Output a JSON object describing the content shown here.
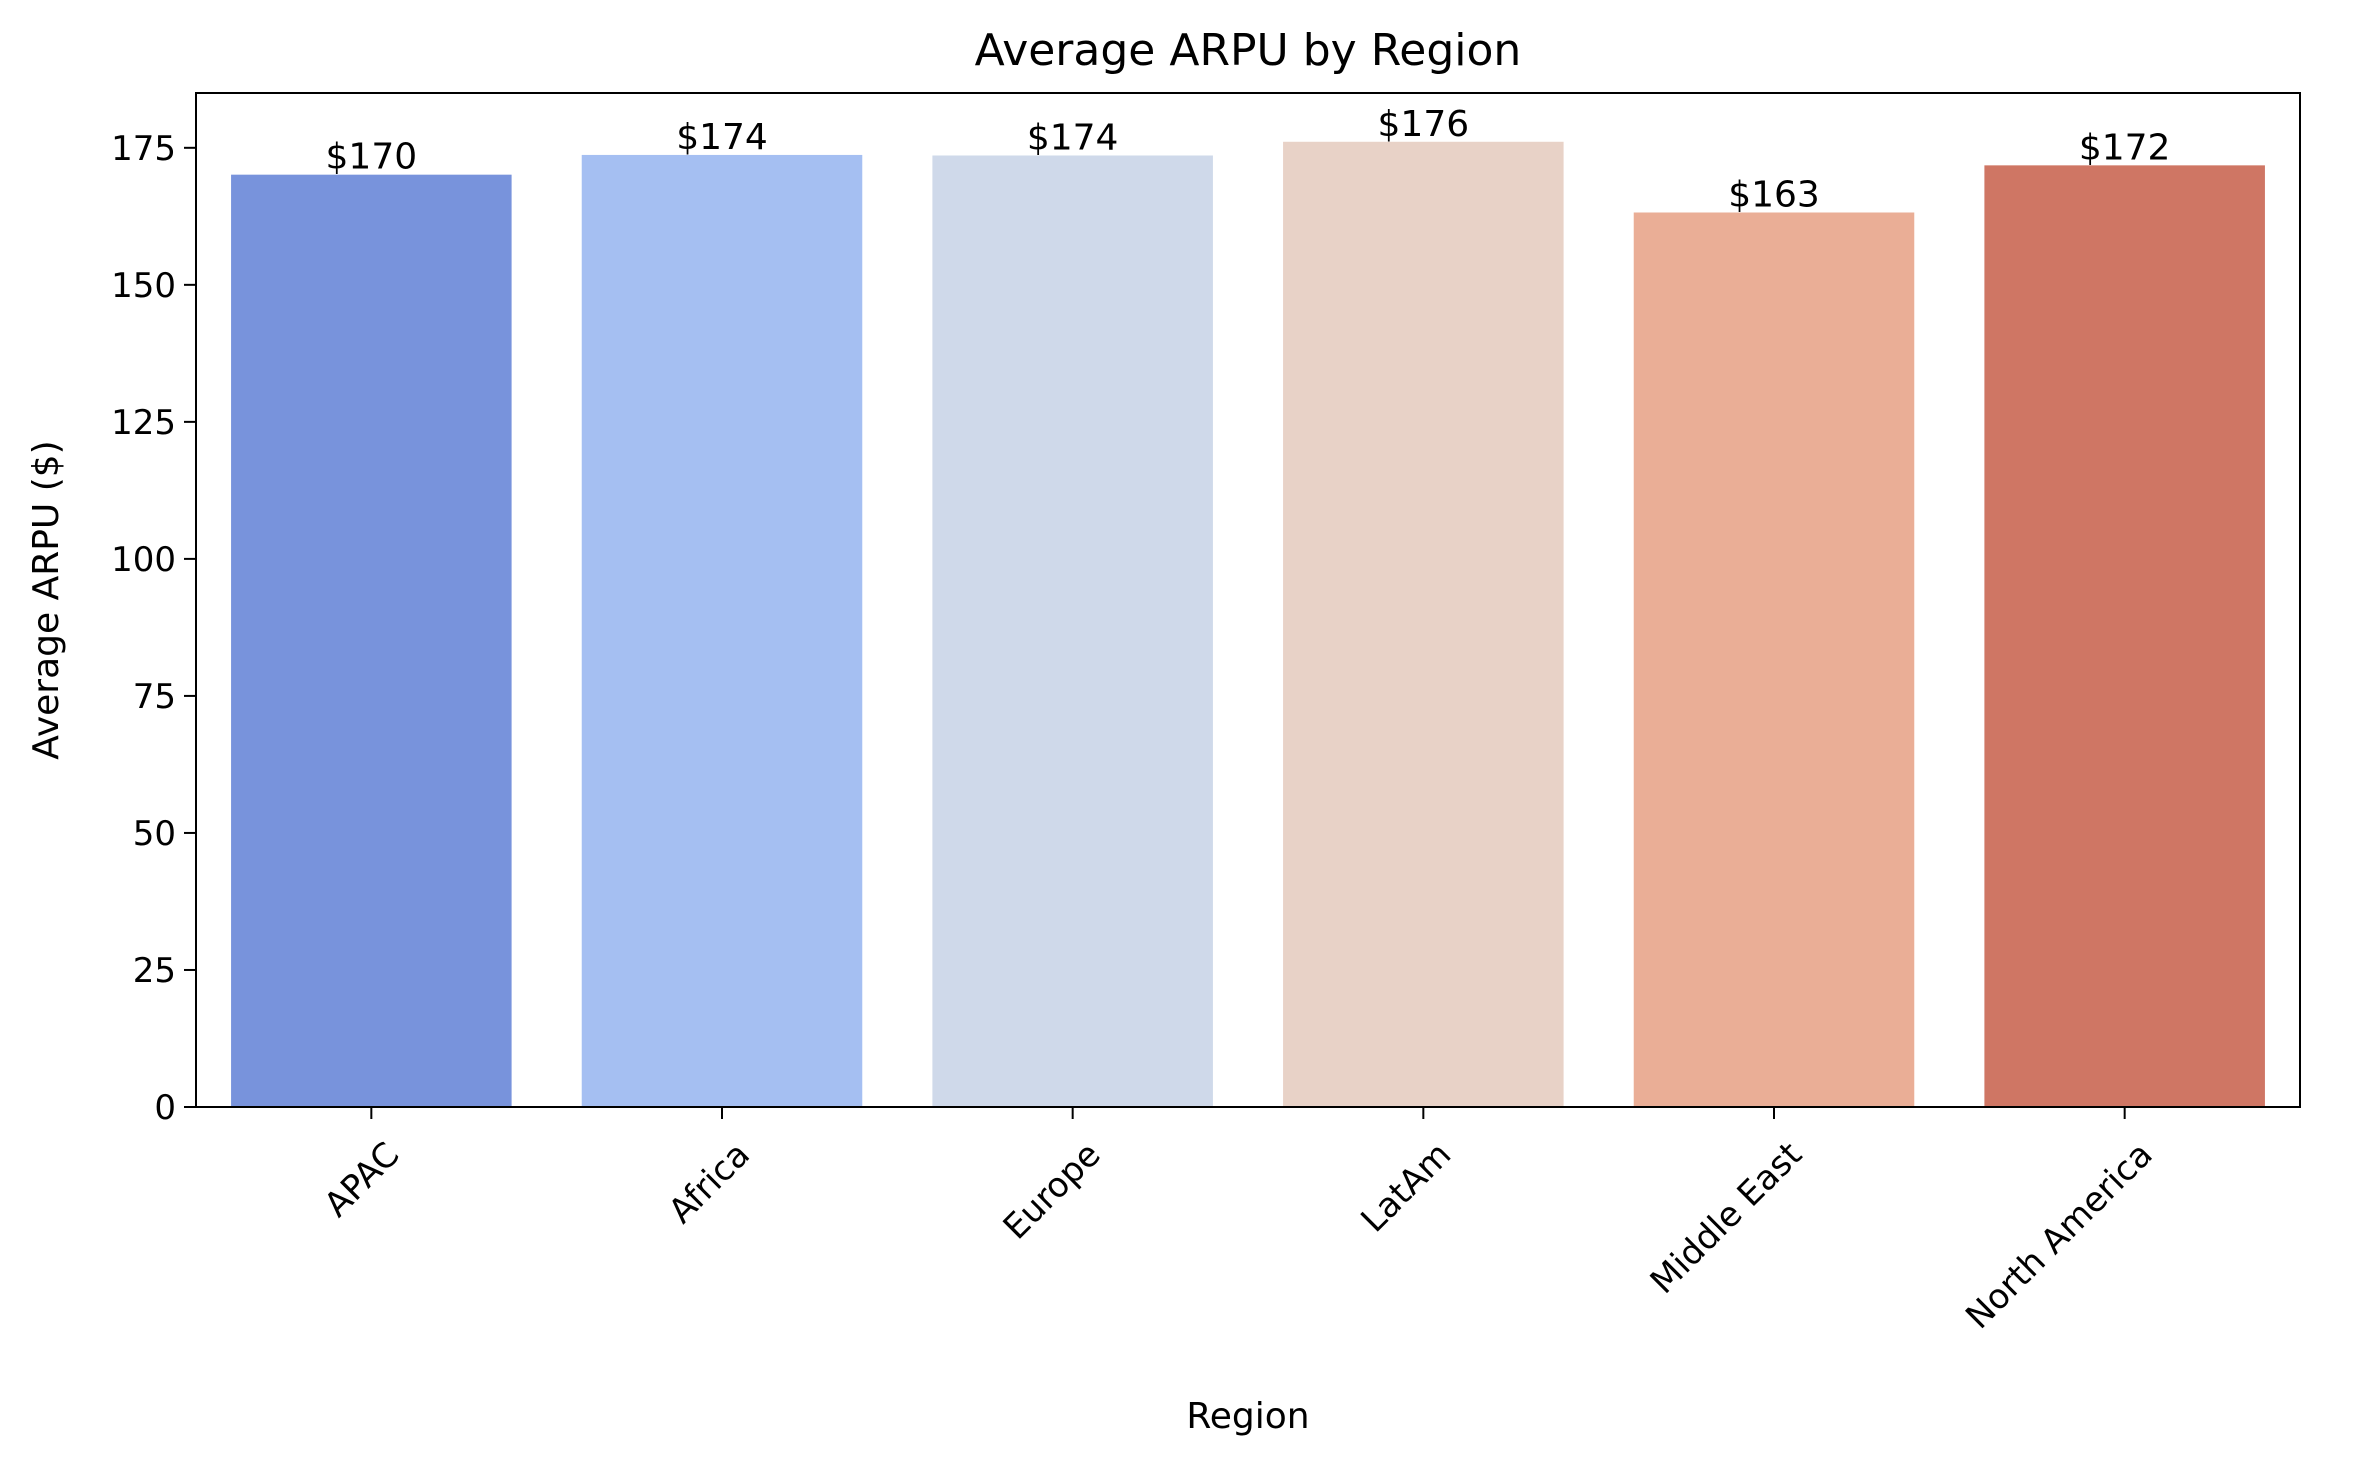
{
  "chart_data": {
    "type": "bar",
    "title": "Average ARPU by Region",
    "xlabel": "Region",
    "ylabel": "Average ARPU ($)",
    "categories": [
      "APAC",
      "Africa",
      "Europe",
      "LatAm",
      "Middle East",
      "North America"
    ],
    "values": [
      170.1,
      173.7,
      173.6,
      176.1,
      163.2,
      171.8
    ],
    "value_labels": [
      "$170",
      "$174",
      "$174",
      "$176",
      "$163",
      "$172"
    ],
    "colors": [
      "#7893dc",
      "#a5bff2",
      "#cfd9ea",
      "#e8d2c7",
      "#eaae96",
      "#cf7664"
    ],
    "yticks": [
      0,
      25,
      50,
      75,
      100,
      125,
      150,
      175
    ],
    "ylim": [
      0,
      185
    ],
    "grid": false,
    "legend": "none",
    "xtick_rotation_deg": 45
  }
}
